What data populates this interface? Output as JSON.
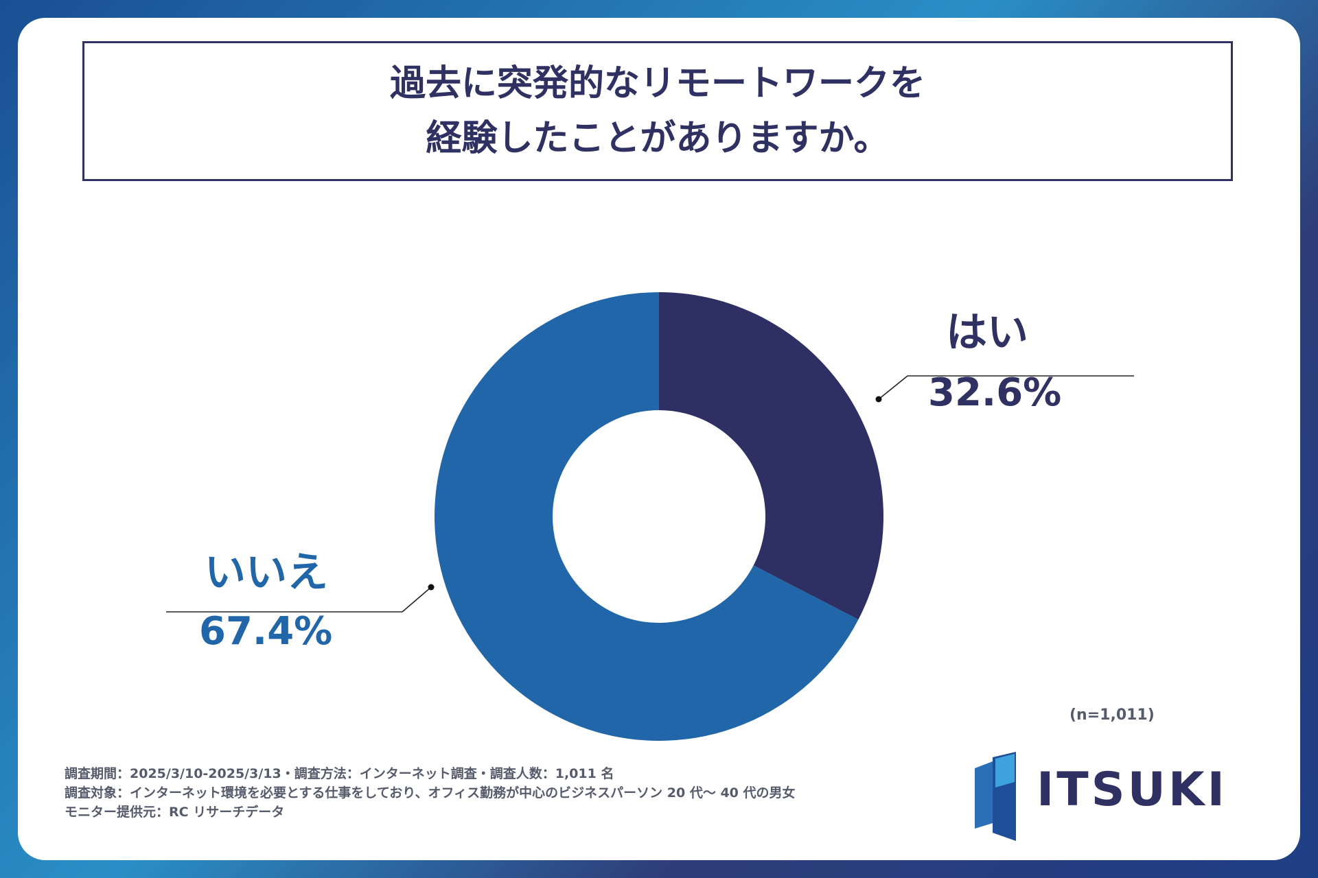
{
  "title": {
    "line1": "過去に突発的なリモートワークを",
    "line2": "経験したことがありますか。"
  },
  "chart_data": {
    "type": "pie",
    "title": "過去に突発的なリモートワークを経験したことがありますか。",
    "categories": [
      "はい",
      "いいえ"
    ],
    "values": [
      32.6,
      67.4
    ],
    "unit": "%",
    "display_values": [
      "32.6%",
      "67.4%"
    ],
    "colors": [
      "#2e2f63",
      "#2066a8"
    ],
    "donut": true
  },
  "sample_size": "(n=1,011)",
  "notes": [
    "調査期間：2025/3/10-2025/3/13・調査方法：インターネット調査・調査人数：1,011 名",
    "調査対象：インターネット環境を必要とする仕事をしており、オフィス勤務が中心のビジネスパーソン 20 代〜 40 代の男女",
    "モニター提供元：RC リサーチデータ"
  ],
  "logo": {
    "text": "ITSUKI"
  }
}
